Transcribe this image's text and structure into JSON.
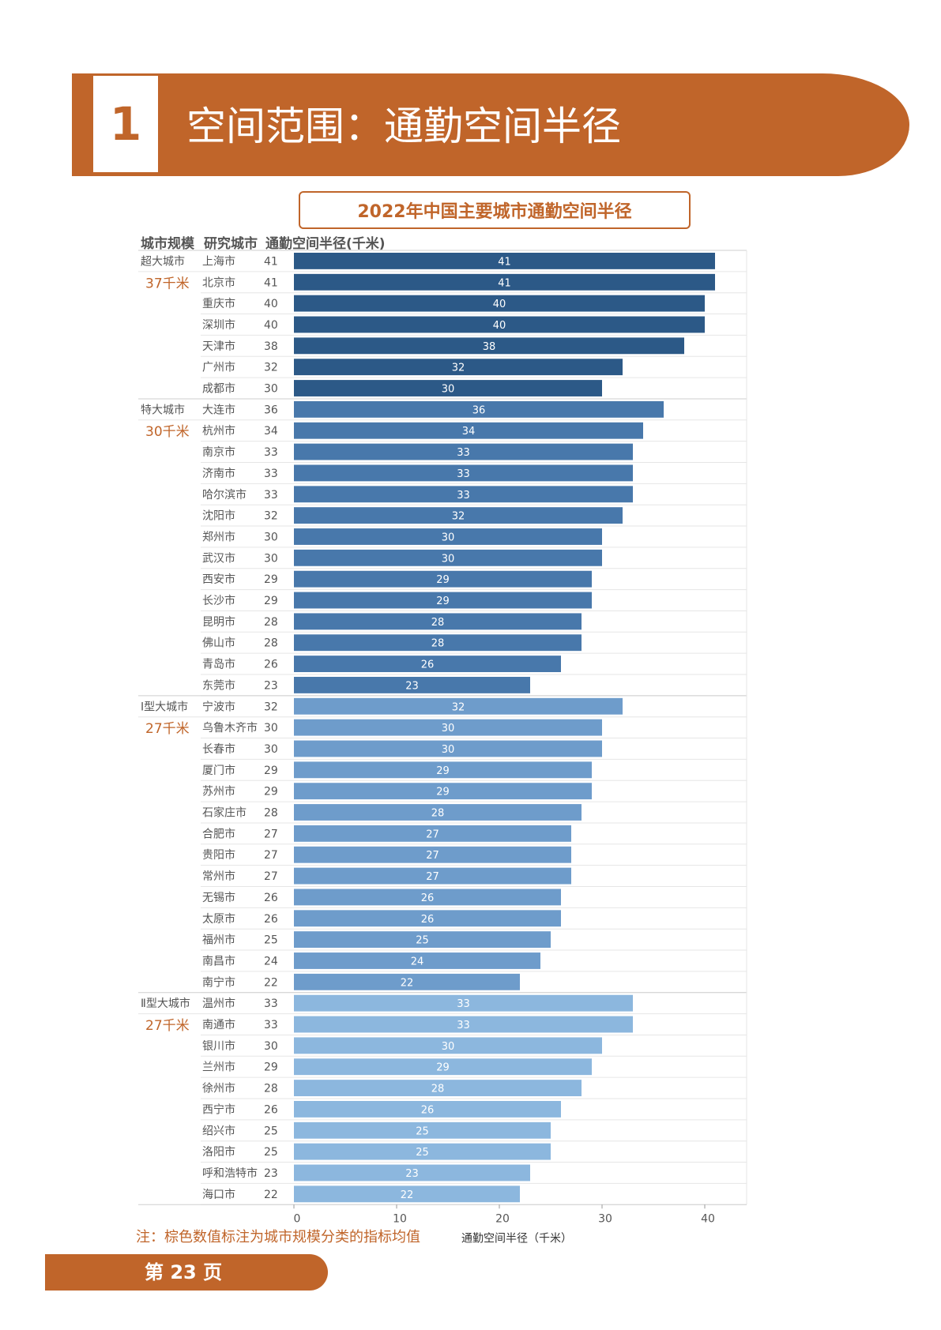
{
  "section": {
    "number": "1",
    "title": "空间范围：通勤空间半径"
  },
  "footer": {
    "page_label": "第 23 页"
  },
  "note": "注：棕色数值标注为城市规模分类的指标均值",
  "colors": {
    "brand": "#c0652a",
    "group_colors": [
      "#2c5987",
      "#4878ab",
      "#6e9ccb",
      "#8cb7de"
    ],
    "avg_text": "#c0652a"
  },
  "chart_data": {
    "type": "bar",
    "orientation": "horizontal",
    "title": "2022年中国主要城市通勤空间半径",
    "column_headers": [
      "城市规模",
      "研究城市",
      "通勤空间半径(千米)"
    ],
    "xlabel": "通勤空间半径（千米）",
    "xlim": [
      0,
      41
    ],
    "xticks": [
      0,
      10,
      20,
      30,
      40
    ],
    "groups": [
      {
        "name": "超大城市",
        "average": "37千米",
        "cities": [
          "上海市",
          "北京市",
          "重庆市",
          "深圳市",
          "天津市",
          "广州市",
          "成都市"
        ],
        "values": [
          41,
          41,
          40,
          40,
          38,
          32,
          30
        ]
      },
      {
        "name": "特大城市",
        "average": "30千米",
        "cities": [
          "大连市",
          "杭州市",
          "南京市",
          "济南市",
          "哈尔滨市",
          "沈阳市",
          "郑州市",
          "武汉市",
          "西安市",
          "长沙市",
          "昆明市",
          "佛山市",
          "青岛市",
          "东莞市"
        ],
        "values": [
          36,
          34,
          33,
          33,
          33,
          32,
          30,
          30,
          29,
          29,
          28,
          28,
          26,
          23
        ]
      },
      {
        "name": "Ⅰ型大城市",
        "average": "27千米",
        "cities": [
          "宁波市",
          "乌鲁木齐市",
          "长春市",
          "厦门市",
          "苏州市",
          "石家庄市",
          "合肥市",
          "贵阳市",
          "常州市",
          "无锡市",
          "太原市",
          "福州市",
          "南昌市",
          "南宁市"
        ],
        "values": [
          32,
          30,
          30,
          29,
          29,
          28,
          27,
          27,
          27,
          26,
          26,
          25,
          24,
          22
        ]
      },
      {
        "name": "Ⅱ型大城市",
        "average": "27千米",
        "cities": [
          "温州市",
          "南通市",
          "银川市",
          "兰州市",
          "徐州市",
          "西宁市",
          "绍兴市",
          "洛阳市",
          "呼和浩特市",
          "海口市"
        ],
        "values": [
          33,
          33,
          30,
          29,
          28,
          26,
          25,
          25,
          23,
          22
        ]
      }
    ]
  }
}
